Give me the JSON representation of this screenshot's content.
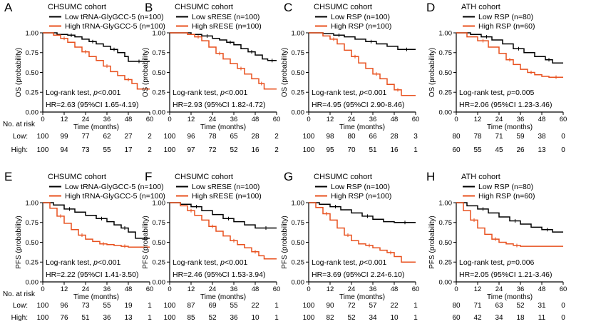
{
  "colors": {
    "low": "#000000",
    "high": "#e8501e",
    "axis": "#000000"
  },
  "risk_labels": {
    "header": "No. at risk",
    "low": "Low:",
    "high": "High:"
  },
  "chart_data": [
    {
      "panel": "A",
      "type": "line",
      "title": "CHSUMC cohort",
      "xlabel": "Time (months)",
      "ylabel": "OS (probability)",
      "xlim": [
        0,
        60
      ],
      "ylim": [
        0,
        1
      ],
      "xticks": [
        "0",
        "12",
        "24",
        "36",
        "48",
        "60"
      ],
      "yticks": [
        "0.00",
        "0.25",
        "0.50",
        "0.75",
        "1.00"
      ],
      "legend_position": "top-left",
      "series": [
        {
          "name": "Low tRNA-GlyGCC-5 (n=100)",
          "group": "low",
          "x": [
            0,
            8,
            14,
            18,
            22,
            26,
            30,
            34,
            38,
            42,
            46,
            48,
            60
          ],
          "y": [
            1.0,
            0.98,
            0.97,
            0.95,
            0.92,
            0.89,
            0.86,
            0.83,
            0.79,
            0.75,
            0.7,
            0.64,
            0.64
          ]
        },
        {
          "name": "High tRNA-GlyGCC-5 (n=100)",
          "group": "high",
          "x": [
            0,
            6,
            10,
            14,
            18,
            22,
            26,
            30,
            34,
            38,
            42,
            46,
            50,
            53,
            60
          ],
          "y": [
            1.0,
            0.97,
            0.93,
            0.88,
            0.82,
            0.76,
            0.7,
            0.65,
            0.58,
            0.51,
            0.46,
            0.41,
            0.36,
            0.29,
            0.29
          ]
        }
      ],
      "annotations": [
        "Log-rank test, p<0.001",
        "HR=2.63 (95%CI 1.65-4.19)"
      ],
      "risk_table": {
        "low": [
          "100",
          "99",
          "77",
          "62",
          "27",
          "2"
        ],
        "high": [
          "100",
          "94",
          "73",
          "55",
          "17",
          "2"
        ]
      },
      "show_risk_labels": true
    },
    {
      "panel": "B",
      "type": "line",
      "title": "CHSUMC cohort",
      "xlabel": "Time (months)",
      "ylabel": "OS (probability)",
      "xlim": [
        0,
        60
      ],
      "ylim": [
        0,
        1
      ],
      "xticks": [
        "0",
        "12",
        "24",
        "36",
        "48",
        "60"
      ],
      "yticks": [
        "0.00",
        "0.25",
        "0.50",
        "0.75",
        "1.00"
      ],
      "legend_position": "top-left",
      "series": [
        {
          "name": "Low sRESE (n=100)",
          "group": "low",
          "x": [
            0,
            12,
            18,
            24,
            28,
            32,
            36,
            40,
            44,
            48,
            52,
            55,
            60
          ],
          "y": [
            1.0,
            0.98,
            0.96,
            0.93,
            0.91,
            0.88,
            0.85,
            0.8,
            0.76,
            0.72,
            0.67,
            0.65,
            0.65
          ]
        },
        {
          "name": "High sRESE (n=100)",
          "group": "high",
          "x": [
            0,
            10,
            14,
            18,
            22,
            26,
            30,
            34,
            38,
            42,
            46,
            50,
            53,
            60
          ],
          "y": [
            1.0,
            0.98,
            0.95,
            0.9,
            0.82,
            0.74,
            0.67,
            0.61,
            0.55,
            0.48,
            0.42,
            0.36,
            0.29,
            0.29
          ]
        }
      ],
      "annotations": [
        "Log-rank test, p<0.001",
        "HR=2.93 (95%CI 1.82-4.72)"
      ],
      "risk_table": {
        "low": [
          "100",
          "96",
          "78",
          "65",
          "28",
          "2"
        ],
        "high": [
          "100",
          "97",
          "72",
          "52",
          "16",
          "2"
        ]
      },
      "show_risk_labels": false
    },
    {
      "panel": "C",
      "type": "line",
      "title": "CHSUMC cohort",
      "xlabel": "Time (months)",
      "ylabel": "OS (probability)",
      "xlim": [
        0,
        60
      ],
      "ylim": [
        0,
        1
      ],
      "xticks": [
        "0",
        "12",
        "24",
        "36",
        "48",
        "60"
      ],
      "yticks": [
        "0.00",
        "0.25",
        "0.50",
        "0.75",
        "1.00"
      ],
      "legend_position": "top-left",
      "series": [
        {
          "name": "Low RSP (n=100)",
          "group": "low",
          "x": [
            0,
            8,
            14,
            20,
            26,
            32,
            38,
            44,
            50,
            60
          ],
          "y": [
            1.0,
            0.99,
            0.97,
            0.95,
            0.92,
            0.89,
            0.86,
            0.83,
            0.79,
            0.79
          ]
        },
        {
          "name": "High RSP (n=100)",
          "group": "high",
          "x": [
            0,
            8,
            12,
            16,
            20,
            24,
            28,
            32,
            36,
            40,
            44,
            48,
            52,
            60
          ],
          "y": [
            1.0,
            0.96,
            0.92,
            0.86,
            0.78,
            0.7,
            0.62,
            0.55,
            0.48,
            0.42,
            0.35,
            0.28,
            0.21,
            0.21
          ]
        }
      ],
      "annotations": [
        "Log-rank test, p<0.001",
        "HR=4.95 (95%CI 2.90-8.46)"
      ],
      "risk_table": {
        "low": [
          "100",
          "98",
          "80",
          "66",
          "28",
          "3"
        ],
        "high": [
          "100",
          "95",
          "70",
          "51",
          "16",
          "1"
        ]
      },
      "show_risk_labels": false
    },
    {
      "panel": "D",
      "type": "line",
      "title": "ATH cohort",
      "xlabel": "Time (months)",
      "ylabel": "OS (probability)",
      "xlim": [
        0,
        60
      ],
      "ylim": [
        0,
        1
      ],
      "xticks": [
        "0",
        "12",
        "24",
        "36",
        "48",
        "60"
      ],
      "yticks": [
        "0.00",
        "0.25",
        "0.50",
        "0.75",
        "1.00"
      ],
      "legend_position": "top-left",
      "series": [
        {
          "name": "Low RSP (n=80)",
          "group": "low",
          "x": [
            0,
            8,
            14,
            20,
            26,
            32,
            38,
            44,
            50,
            54,
            60
          ],
          "y": [
            1.0,
            0.98,
            0.95,
            0.91,
            0.86,
            0.8,
            0.75,
            0.7,
            0.66,
            0.62,
            0.62
          ]
        },
        {
          "name": "High RSP (n=60)",
          "group": "high",
          "x": [
            0,
            6,
            12,
            18,
            24,
            28,
            32,
            36,
            40,
            44,
            48,
            52,
            60
          ],
          "y": [
            1.0,
            0.95,
            0.9,
            0.82,
            0.74,
            0.66,
            0.6,
            0.54,
            0.5,
            0.47,
            0.45,
            0.44,
            0.44
          ]
        }
      ],
      "annotations": [
        "Log-rank test, p=0.005",
        "HR=2.06 (95%CI 1.23-3.46)"
      ],
      "risk_table": {
        "low": [
          "80",
          "78",
          "71",
          "59",
          "38",
          "0"
        ],
        "high": [
          "60",
          "55",
          "45",
          "26",
          "13",
          "0"
        ]
      },
      "show_risk_labels": false
    },
    {
      "panel": "E",
      "type": "line",
      "title": "CHSUMC cohort",
      "xlabel": "Time (months)",
      "ylabel": "PFS (probability)",
      "xlim": [
        0,
        60
      ],
      "ylim": [
        0,
        1
      ],
      "xticks": [
        "0",
        "12",
        "24",
        "36",
        "48",
        "60"
      ],
      "yticks": [
        "0.00",
        "0.25",
        "0.50",
        "0.75",
        "1.00"
      ],
      "legend_position": "top-left",
      "series": [
        {
          "name": "Low tRNA-GlyGCC-5 (n=100)",
          "group": "low",
          "x": [
            0,
            6,
            12,
            18,
            24,
            30,
            36,
            40,
            44,
            48,
            52,
            60
          ],
          "y": [
            1.0,
            0.97,
            0.92,
            0.88,
            0.84,
            0.8,
            0.76,
            0.72,
            0.68,
            0.63,
            0.55,
            0.55
          ]
        },
        {
          "name": "High tRNA-GlyGCC-5 (n=100)",
          "group": "high",
          "x": [
            0,
            4,
            8,
            12,
            16,
            20,
            24,
            28,
            32,
            36,
            40,
            44,
            48,
            60
          ],
          "y": [
            1.0,
            0.93,
            0.83,
            0.74,
            0.66,
            0.59,
            0.54,
            0.51,
            0.48,
            0.47,
            0.46,
            0.45,
            0.44,
            0.44
          ]
        }
      ],
      "annotations": [
        "Log-rank test, p<0.001",
        "HR=2.22 (95%CI 1.41-3.50)"
      ],
      "risk_table": {
        "low": [
          "100",
          "96",
          "73",
          "55",
          "19",
          "1"
        ],
        "high": [
          "100",
          "76",
          "51",
          "36",
          "13",
          "1"
        ]
      },
      "show_risk_labels": true
    },
    {
      "panel": "F",
      "type": "line",
      "title": "CHSUMC cohort",
      "xlabel": "Time (months)",
      "ylabel": "PFS (probability)",
      "xlim": [
        0,
        60
      ],
      "ylim": [
        0,
        1
      ],
      "xticks": [
        "0",
        "12",
        "24",
        "36",
        "48",
        "60"
      ],
      "yticks": [
        "0.00",
        "0.25",
        "0.50",
        "0.75",
        "1.00"
      ],
      "legend_position": "top-left",
      "series": [
        {
          "name": "Low sRESE (n=100)",
          "group": "low",
          "x": [
            0,
            6,
            12,
            18,
            24,
            30,
            36,
            42,
            48,
            60
          ],
          "y": [
            1.0,
            0.98,
            0.95,
            0.9,
            0.85,
            0.8,
            0.76,
            0.72,
            0.68,
            0.68
          ]
        },
        {
          "name": "High sRESE (n=100)",
          "group": "high",
          "x": [
            0,
            6,
            10,
            14,
            18,
            22,
            26,
            30,
            34,
            38,
            42,
            46,
            50,
            53,
            60
          ],
          "y": [
            1.0,
            0.96,
            0.9,
            0.84,
            0.78,
            0.7,
            0.64,
            0.58,
            0.52,
            0.47,
            0.43,
            0.38,
            0.33,
            0.29,
            0.29
          ]
        }
      ],
      "annotations": [
        "Log-rank test, p<0.001",
        "HR=2.46 (95%CI 1.53-3.94)"
      ],
      "risk_table": {
        "low": [
          "100",
          "87",
          "69",
          "55",
          "22",
          "1"
        ],
        "high": [
          "100",
          "85",
          "52",
          "36",
          "10",
          "1"
        ]
      },
      "show_risk_labels": false
    },
    {
      "panel": "G",
      "type": "line",
      "title": "CHSUMC cohort",
      "xlabel": "Time (months)",
      "ylabel": "PFS (probability)",
      "xlim": [
        0,
        60
      ],
      "ylim": [
        0,
        1
      ],
      "xticks": [
        "0",
        "12",
        "24",
        "36",
        "48",
        "60"
      ],
      "yticks": [
        "0.00",
        "0.25",
        "0.50",
        "0.75",
        "1.00"
      ],
      "legend_position": "top-left",
      "series": [
        {
          "name": "Low RSP (n=100)",
          "group": "low",
          "x": [
            0,
            6,
            12,
            18,
            24,
            30,
            36,
            42,
            48,
            60
          ],
          "y": [
            1.0,
            0.98,
            0.95,
            0.91,
            0.87,
            0.83,
            0.79,
            0.76,
            0.75,
            0.75
          ]
        },
        {
          "name": "High RSP (n=100)",
          "group": "high",
          "x": [
            0,
            4,
            8,
            12,
            16,
            20,
            24,
            28,
            32,
            36,
            40,
            44,
            48,
            52,
            60
          ],
          "y": [
            1.0,
            0.94,
            0.86,
            0.78,
            0.68,
            0.59,
            0.52,
            0.48,
            0.46,
            0.43,
            0.4,
            0.37,
            0.32,
            0.25,
            0.25
          ]
        }
      ],
      "annotations": [
        "Log-rank test, p<0.001",
        "HR=3.69 (95%CI 2.24-6.10)"
      ],
      "risk_table": {
        "low": [
          "100",
          "90",
          "72",
          "57",
          "22",
          "1"
        ],
        "high": [
          "100",
          "82",
          "52",
          "34",
          "10",
          "1"
        ]
      },
      "show_risk_labels": false
    },
    {
      "panel": "H",
      "type": "line",
      "title": "ATH cohort",
      "xlabel": "Time (months)",
      "ylabel": "PFS (probability)",
      "xlim": [
        0,
        60
      ],
      "ylim": [
        0,
        1
      ],
      "xticks": [
        "0",
        "12",
        "24",
        "36",
        "48",
        "60"
      ],
      "yticks": [
        "0.00",
        "0.25",
        "0.50",
        "0.75",
        "1.00"
      ],
      "legend_position": "top-left",
      "series": [
        {
          "name": "Low RSP (n=80)",
          "group": "low",
          "x": [
            0,
            6,
            12,
            18,
            24,
            30,
            36,
            42,
            48,
            54,
            60
          ],
          "y": [
            1.0,
            0.96,
            0.92,
            0.87,
            0.82,
            0.77,
            0.73,
            0.69,
            0.66,
            0.63,
            0.63
          ]
        },
        {
          "name": "High RSP (n=60)",
          "group": "high",
          "x": [
            0,
            4,
            8,
            12,
            16,
            20,
            24,
            28,
            32,
            36,
            60
          ],
          "y": [
            1.0,
            0.9,
            0.78,
            0.68,
            0.6,
            0.54,
            0.5,
            0.48,
            0.46,
            0.45,
            0.45
          ]
        }
      ],
      "annotations": [
        "Log-rank test, p=0.006",
        "HR=2.05 (95%CI 1.21-3.46)"
      ],
      "risk_table": {
        "low": [
          "80",
          "71",
          "63",
          "52",
          "31",
          "0"
        ],
        "high": [
          "60",
          "42",
          "34",
          "18",
          "11",
          "0"
        ]
      },
      "show_risk_labels": false
    }
  ]
}
